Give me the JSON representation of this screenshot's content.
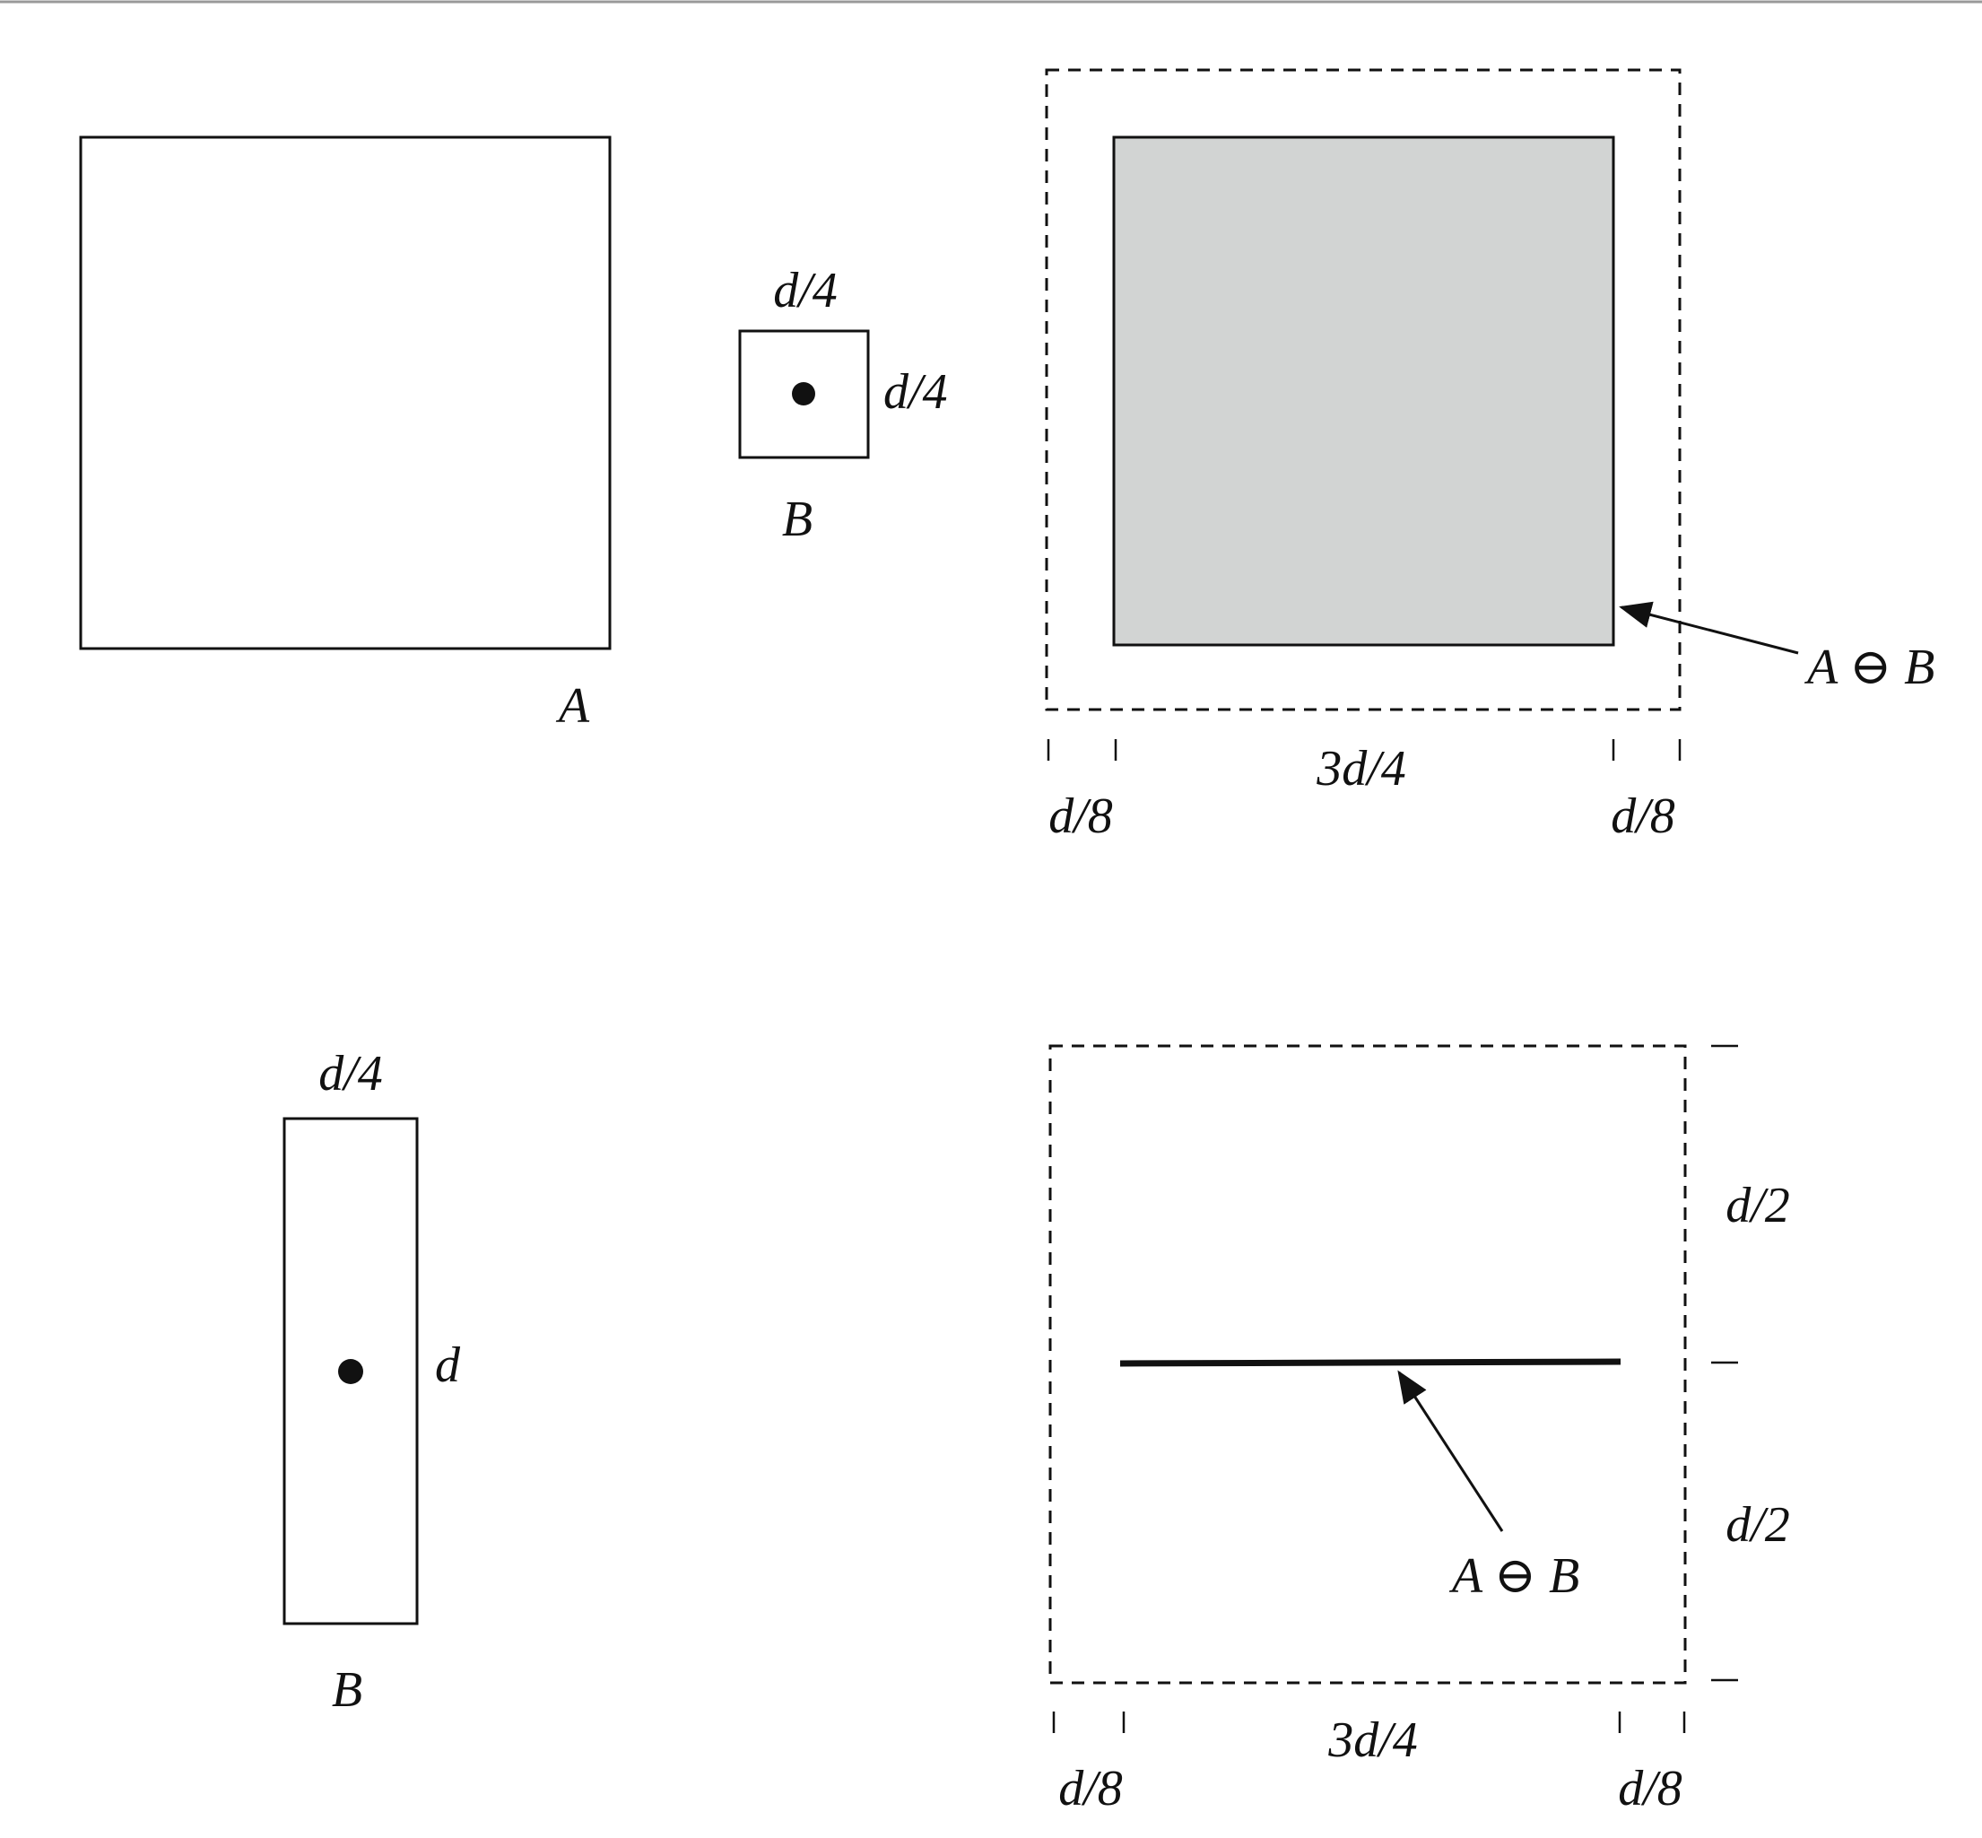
{
  "figure": {
    "top": {
      "set_a_label": "A",
      "se_small": {
        "width_label": "d/4",
        "height_label": "d/4",
        "name_label": "B"
      },
      "result": {
        "label": "A ⊖ B",
        "dim_left": "d/8",
        "dim_center": "3d/4",
        "dim_right": "d/8"
      }
    },
    "bottom": {
      "se_rect": {
        "width_label": "d/4",
        "height_label": "d",
        "name_label": "B"
      },
      "result": {
        "label": "A ⊖ B",
        "dim_left": "d/8",
        "dim_center": "3d/4",
        "dim_right": "d/8",
        "dim_upper": "d/2",
        "dim_lower": "d/2"
      }
    }
  },
  "colors": {
    "stroke": "#111111",
    "result_fill": "#d2d4d3",
    "background": "#ffffff"
  }
}
